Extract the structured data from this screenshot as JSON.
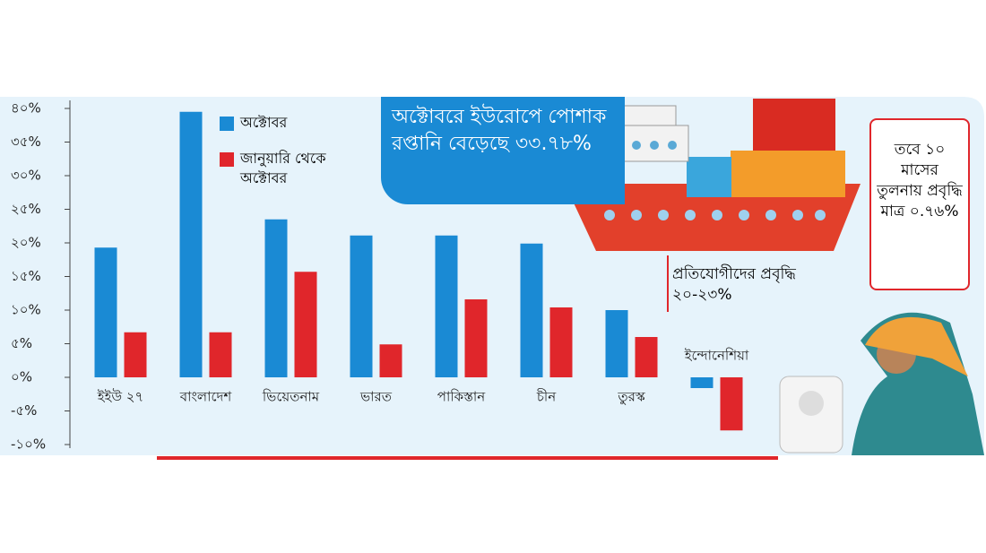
{
  "chart_data": {
    "type": "bar",
    "categories": [
      "ইইউ ২৭",
      "বাংলাদেশ",
      "ভিয়েতনাম",
      "ভারত",
      "পাকিস্তান",
      "চীন",
      "তুরস্ক",
      "ইন্দোনেশিয়া"
    ],
    "series": [
      {
        "name": "অক্টোবর",
        "color": "#1a8ad4",
        "values": [
          19.3,
          39.5,
          23.5,
          21.1,
          21.1,
          19.9,
          10,
          -1.6
        ]
      },
      {
        "name": "জানুয়ারি থেকে অক্টোবর",
        "color": "#e0262b",
        "values": [
          6.7,
          6.7,
          15.7,
          4.9,
          11.6,
          10.4,
          6,
          -7.9
        ]
      }
    ],
    "ylim": [
      -10,
      40
    ],
    "yticks": [
      {
        "value": -10,
        "label": "-১০%"
      },
      {
        "value": -5,
        "label": "-৫%"
      },
      {
        "value": 0,
        "label": "০%"
      },
      {
        "value": 5,
        "label": "৫%"
      },
      {
        "value": 10,
        "label": "১০%"
      },
      {
        "value": 15,
        "label": "১৫%"
      },
      {
        "value": 20,
        "label": "২০%"
      },
      {
        "value": 25,
        "label": "২৫%"
      },
      {
        "value": 30,
        "label": "৩০%"
      },
      {
        "value": 35,
        "label": "৩৫%"
      },
      {
        "value": 40,
        "label": "৪০%"
      }
    ],
    "annotations": [
      "অক্টোবরে ইউরোপে পোশাক রপ্তানি বেড়েছে ৩৩.৭৮%",
      "প্রতিযোগীদের প্রবৃদ্ধি ২০-২৩%",
      "তবে ১০ মাসের তুলনায় প্রবৃদ্ধি মাত্র ০.৭৬%"
    ]
  }
}
